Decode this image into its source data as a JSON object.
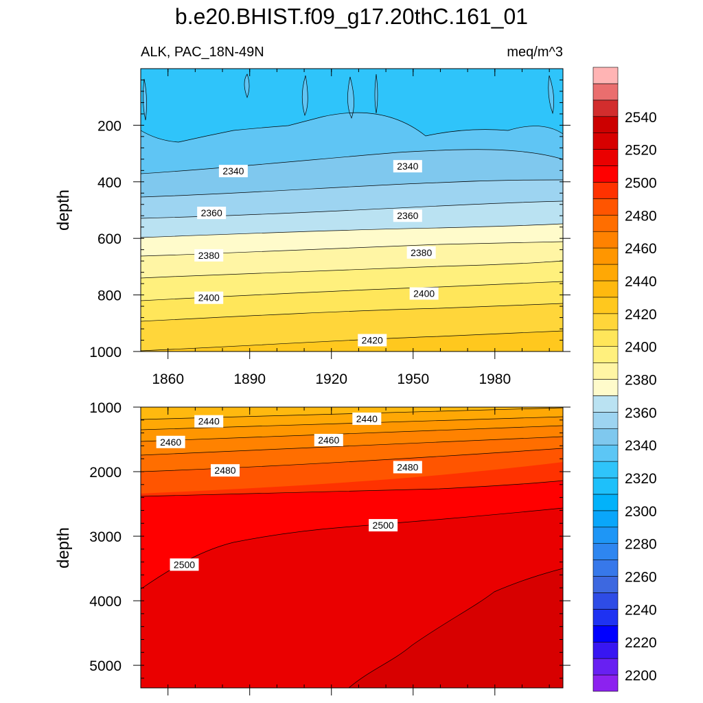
{
  "title": "b.e20.BHIST.f09_g17.20thC.161_01",
  "variable_label": "ALK, PAC_18N-49N",
  "units_label": "meq/m^3",
  "chart_data": [
    {
      "type": "contour",
      "panel": "upper",
      "ylabel": "depth",
      "xlim": [
        1850,
        2005
      ],
      "ylim": [
        1000,
        0
      ],
      "xticks": [
        1860,
        1890,
        1920,
        1950,
        1980
      ],
      "x_tick_labels": [
        "1860",
        "1890",
        "1920",
        "1950",
        "1980"
      ],
      "yticks": [
        200,
        400,
        600,
        800,
        1000
      ],
      "y_tick_labels": [
        "200",
        "400",
        "600",
        "800",
        "1000"
      ],
      "contour_labels": [
        {
          "text": "2340",
          "x": 1884,
          "y": 362
        },
        {
          "text": "2340",
          "x": 1948,
          "y": 345
        },
        {
          "text": "2360",
          "x": 1876,
          "y": 510
        },
        {
          "text": "2360",
          "x": 1948,
          "y": 520
        },
        {
          "text": "2380",
          "x": 1875,
          "y": 660
        },
        {
          "text": "2380",
          "x": 1953,
          "y": 650
        },
        {
          "text": "2400",
          "x": 1875,
          "y": 810
        },
        {
          "text": "2400",
          "x": 1954,
          "y": 795
        },
        {
          "text": "2420",
          "x": 1935,
          "y": 960
        }
      ]
    },
    {
      "type": "contour",
      "panel": "lower",
      "ylabel": "depth",
      "xlim": [
        1850,
        2005
      ],
      "ylim": [
        5350,
        1000
      ],
      "xticks": [
        1860,
        1890,
        1920,
        1950,
        1980
      ],
      "yticks": [
        1000,
        2000,
        3000,
        4000,
        5000
      ],
      "y_tick_labels": [
        "1000",
        "2000",
        "3000",
        "4000",
        "5000"
      ],
      "contour_labels": [
        {
          "text": "2440",
          "x": 1875,
          "y": 1220
        },
        {
          "text": "2440",
          "x": 1933,
          "y": 1180
        },
        {
          "text": "2460",
          "x": 1861,
          "y": 1540
        },
        {
          "text": "2460",
          "x": 1919,
          "y": 1510
        },
        {
          "text": "2480",
          "x": 1881,
          "y": 1980
        },
        {
          "text": "2480",
          "x": 1948,
          "y": 1930
        },
        {
          "text": "2500",
          "x": 1939,
          "y": 2830
        },
        {
          "text": "2500",
          "x": 1866,
          "y": 3440
        }
      ]
    }
  ],
  "colorbar": {
    "levels": [
      2200,
      2210,
      2220,
      2230,
      2240,
      2250,
      2260,
      2270,
      2280,
      2290,
      2300,
      2310,
      2320,
      2330,
      2340,
      2350,
      2360,
      2370,
      2380,
      2390,
      2400,
      2410,
      2420,
      2430,
      2440,
      2450,
      2460,
      2470,
      2480,
      2490,
      2500,
      2510,
      2520,
      2530,
      2540,
      2550
    ],
    "tick_labels": [
      "2200",
      "2220",
      "2240",
      "2260",
      "2280",
      "2300",
      "2320",
      "2340",
      "2360",
      "2380",
      "2400",
      "2420",
      "2440",
      "2460",
      "2480",
      "2500",
      "2520",
      "2540"
    ],
    "colors": [
      "#8c22ef",
      "#6820f2",
      "#3816f2",
      "#0000ff",
      "#1e32f2",
      "#2e4ce6",
      "#3d68e0",
      "#3778ea",
      "#2e86f0",
      "#1e96f6",
      "#0aa6fa",
      "#02b2fa",
      "#1ec0fa",
      "#2fc4fa",
      "#5cc6f5",
      "#7fc8ee",
      "#9dd4f1",
      "#bae2f2",
      "#fffbcb",
      "#fff5a4",
      "#fff07d",
      "#ffe65a",
      "#ffd63a",
      "#ffc81e",
      "#ffb90f",
      "#ffa805",
      "#ff9600",
      "#ff8200",
      "#ff6e00",
      "#ff5500",
      "#ff3200",
      "#ff0000",
      "#ea0000",
      "#d70000",
      "#cc0000",
      "#d22d2d",
      "#ea6e6e",
      "#ffb4b4"
    ]
  }
}
